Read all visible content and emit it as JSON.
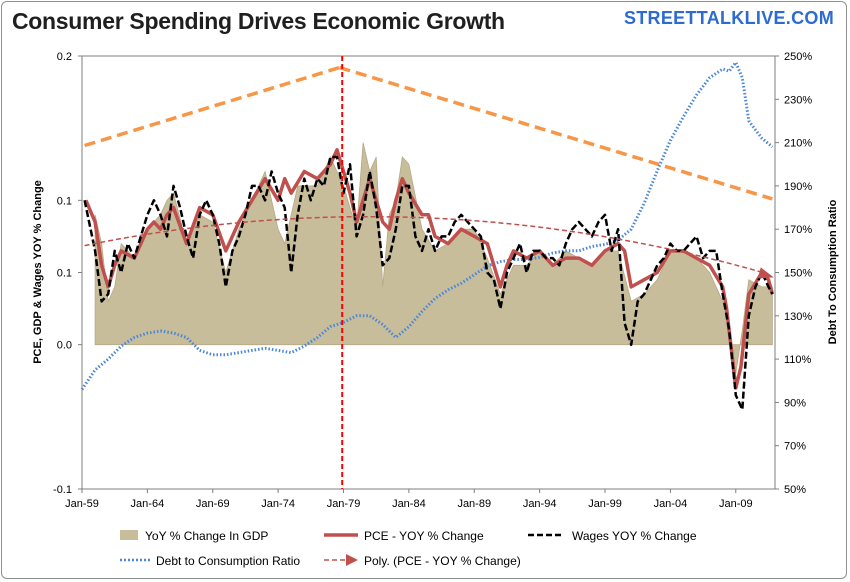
{
  "header": {
    "title": "Consumer Spending Drives Economic Growth",
    "brand": "STREETTALKLIVE.COM"
  },
  "colors": {
    "gdp": "#c8bd9a",
    "pce": "#c0504d",
    "wages": "#000000",
    "debt": "#4a86d9",
    "trendline": "#f79646",
    "poly": "#c0504d",
    "marker": "#ff0000"
  },
  "chart_data": {
    "type": "area",
    "title": "Consumer Spending Drives Economic Growth",
    "ylabel": "PCE, GDP & Wages YOY % Change",
    "y2label": "Debt To Consumption Ratio",
    "xlabel": "",
    "x_range": [
      1959.0,
      2012.0
    ],
    "ylim": [
      -0.1,
      0.2
    ],
    "y2lim": [
      0.5,
      2.5
    ],
    "x_ticks": [
      "Jan-59",
      "Jan-64",
      "Jan-69",
      "Jan-74",
      "Jan-79",
      "Jan-84",
      "Jan-89",
      "Jan-94",
      "Jan-99",
      "Jan-04",
      "Jan-09"
    ],
    "x_tick_years": [
      1959,
      1964,
      1969,
      1974,
      1979,
      1984,
      1989,
      1994,
      1999,
      2004,
      2009
    ],
    "y_ticks": [
      "-0.1",
      "0.0",
      "0.1",
      "0.1",
      "0.2"
    ],
    "y_tick_values": [
      -0.1,
      0.0,
      0.05,
      0.1,
      0.2
    ],
    "y2_ticks": [
      "50%",
      "70%",
      "90%",
      "110%",
      "130%",
      "150%",
      "170%",
      "190%",
      "210%",
      "230%",
      "250%"
    ],
    "y2_tick_values": [
      0.5,
      0.7,
      0.9,
      1.1,
      1.3,
      1.5,
      1.7,
      1.9,
      2.1,
      2.3,
      2.5
    ],
    "legend": [
      {
        "key": "gdp",
        "label": "YoY % Change In GDP"
      },
      {
        "key": "pce",
        "label": "PCE - YOY % Change"
      },
      {
        "key": "wages",
        "label": "Wages YOY % Change"
      },
      {
        "key": "debt",
        "label": "Debt to Consumption Ratio"
      },
      {
        "key": "poly",
        "label": "Poly. (PCE - YOY % Change)"
      }
    ],
    "marker_year": 1978.9,
    "series": [
      {
        "name": "YoY % Change In GDP",
        "axis": "left",
        "x": [
          1960,
          1960.5,
          1961,
          1961.5,
          1962,
          1963,
          1964,
          1965,
          1965.5,
          1966,
          1967,
          1968,
          1969,
          1970,
          1971,
          1972,
          1973,
          1974,
          1974.5,
          1975,
          1975.5,
          1976,
          1977,
          1978,
          1979,
          1979.5,
          1980,
          1980.5,
          1981,
          1981.5,
          1982,
          1982.5,
          1983,
          1983.5,
          1984,
          1985,
          1986,
          1987,
          1988,
          1989,
          1990,
          1991,
          1992,
          1993,
          1994,
          1995,
          1996,
          1997,
          1998,
          1999,
          2000,
          2001,
          2002,
          2003,
          2004,
          2005,
          2006,
          2007,
          2008,
          2008.5,
          2009,
          2009.5,
          2010,
          2011,
          2011.8
        ],
        "values": [
          0.09,
          0.07,
          0.03,
          0.04,
          0.07,
          0.06,
          0.08,
          0.09,
          0.1,
          0.105,
          0.07,
          0.09,
          0.085,
          0.05,
          0.08,
          0.1,
          0.12,
          0.08,
          0.07,
          0.09,
          0.11,
          0.11,
          0.11,
          0.13,
          0.11,
          0.095,
          0.08,
          0.14,
          0.12,
          0.13,
          0.04,
          0.09,
          0.1,
          0.13,
          0.125,
          0.08,
          0.065,
          0.07,
          0.08,
          0.08,
          0.06,
          0.035,
          0.055,
          0.055,
          0.065,
          0.055,
          0.065,
          0.06,
          0.055,
          0.065,
          0.065,
          0.03,
          0.035,
          0.045,
          0.065,
          0.065,
          0.06,
          0.05,
          0.03,
          0.015,
          -0.02,
          0.01,
          0.045,
          0.04,
          0.04
        ]
      },
      {
        "name": "PCE - YOY % Change",
        "axis": "left",
        "x": [
          1959.3,
          1960,
          1960.5,
          1961,
          1961.5,
          1962,
          1963,
          1964,
          1964.5,
          1965,
          1965.5,
          1966,
          1967,
          1968,
          1969,
          1970,
          1971,
          1972,
          1973,
          1974,
          1974.5,
          1975,
          1976,
          1977,
          1978,
          1978.5,
          1979,
          1979.5,
          1980,
          1980.5,
          1981,
          1982,
          1982.5,
          1983,
          1983.5,
          1984,
          1985,
          1985.5,
          1986,
          1987,
          1988,
          1989,
          1990,
          1991,
          1991.5,
          1992,
          1993,
          1994,
          1995,
          1996,
          1997,
          1998,
          1999,
          2000,
          2000.5,
          2001,
          2002,
          2003,
          2004,
          2005,
          2006,
          2007,
          2008,
          2008.3,
          2009,
          2009.4,
          2010,
          2011,
          2011.5,
          2011.8
        ],
        "values": [
          0.1,
          0.085,
          0.055,
          0.04,
          0.055,
          0.065,
          0.06,
          0.08,
          0.085,
          0.08,
          0.09,
          0.095,
          0.07,
          0.095,
          0.09,
          0.065,
          0.085,
          0.1,
          0.115,
          0.1,
          0.115,
          0.105,
          0.12,
          0.115,
          0.125,
          0.135,
          0.12,
          0.105,
          0.085,
          0.1,
          0.115,
          0.085,
          0.08,
          0.1,
          0.115,
          0.105,
          0.09,
          0.09,
          0.075,
          0.07,
          0.08,
          0.075,
          0.07,
          0.04,
          0.055,
          0.065,
          0.06,
          0.065,
          0.055,
          0.06,
          0.06,
          0.055,
          0.065,
          0.07,
          0.065,
          0.04,
          0.045,
          0.05,
          0.065,
          0.065,
          0.06,
          0.055,
          0.04,
          0.025,
          -0.03,
          -0.015,
          0.035,
          0.05,
          0.045,
          0.035
        ]
      },
      {
        "name": "Wages YOY % Change",
        "axis": "left",
        "x": [
          1959.2,
          1960,
          1960.5,
          1961,
          1961.5,
          1962,
          1962.5,
          1963,
          1963.5,
          1964,
          1964.5,
          1965,
          1965.5,
          1966,
          1966.5,
          1967,
          1967.5,
          1968,
          1968.5,
          1969,
          1969.5,
          1970,
          1970.5,
          1971,
          1971.5,
          1972,
          1972.5,
          1973,
          1973.5,
          1974,
          1974.5,
          1975,
          1975.5,
          1976,
          1976.5,
          1977,
          1977.5,
          1978,
          1978.5,
          1979,
          1979.5,
          1980,
          1980.5,
          1981,
          1981.5,
          1982,
          1982.5,
          1983,
          1983.5,
          1984,
          1984.5,
          1985,
          1985.5,
          1986,
          1986.5,
          1987,
          1987.5,
          1988,
          1988.5,
          1989,
          1989.5,
          1990,
          1990.5,
          1991,
          1991.5,
          1992,
          1992.5,
          1993,
          1993.5,
          1994,
          1994.5,
          1995,
          1995.5,
          1996,
          1996.5,
          1997,
          1997.5,
          1998,
          1998.5,
          1999,
          1999.5,
          2000,
          2000.5,
          2001,
          2001.5,
          2002,
          2002.5,
          2003,
          2003.5,
          2004,
          2004.5,
          2005,
          2005.5,
          2006,
          2006.5,
          2007,
          2007.5,
          2008,
          2008.5,
          2009,
          2009.5,
          2010,
          2010.5,
          2011,
          2011.5,
          2011.8
        ],
        "values": [
          0.1,
          0.065,
          0.03,
          0.035,
          0.065,
          0.05,
          0.07,
          0.06,
          0.075,
          0.09,
          0.1,
          0.09,
          0.075,
          0.11,
          0.095,
          0.075,
          0.06,
          0.09,
          0.1,
          0.09,
          0.07,
          0.04,
          0.065,
          0.075,
          0.09,
          0.11,
          0.11,
          0.1,
          0.12,
          0.105,
          0.095,
          0.05,
          0.09,
          0.115,
          0.1,
          0.115,
          0.11,
          0.13,
          0.13,
          0.105,
          0.125,
          0.075,
          0.09,
          0.12,
          0.095,
          0.055,
          0.06,
          0.08,
          0.11,
          0.11,
          0.075,
          0.065,
          0.08,
          0.065,
          0.075,
          0.075,
          0.085,
          0.09,
          0.085,
          0.08,
          0.075,
          0.05,
          0.045,
          0.025,
          0.05,
          0.06,
          0.07,
          0.05,
          0.065,
          0.065,
          0.06,
          0.06,
          0.055,
          0.07,
          0.08,
          0.085,
          0.08,
          0.075,
          0.085,
          0.09,
          0.065,
          0.08,
          0.015,
          0.0,
          0.03,
          0.035,
          0.045,
          0.055,
          0.06,
          0.07,
          0.065,
          0.065,
          0.07,
          0.075,
          0.06,
          0.065,
          0.065,
          0.035,
          0.01,
          -0.035,
          -0.045,
          0.02,
          0.04,
          0.05,
          0.04,
          0.035
        ]
      },
      {
        "name": "Debt to Consumption Ratio",
        "axis": "right",
        "x": [
          1959.0,
          1960,
          1961,
          1962,
          1963,
          1964,
          1965,
          1966,
          1967,
          1968,
          1969,
          1970,
          1971,
          1972,
          1973,
          1974,
          1975,
          1976,
          1977,
          1978,
          1979,
          1980,
          1981,
          1982,
          1983,
          1984,
          1985,
          1986,
          1987,
          1988,
          1989,
          1990,
          1991,
          1992,
          1993,
          1994,
          1995,
          1996,
          1997,
          1998,
          1999,
          2000,
          2001,
          2002,
          2003,
          2004,
          2005,
          2006,
          2007,
          2008,
          2008.5,
          2009,
          2009.5,
          2010,
          2011,
          2011.8
        ],
        "values": [
          0.96,
          1.05,
          1.1,
          1.16,
          1.2,
          1.22,
          1.23,
          1.22,
          1.2,
          1.14,
          1.12,
          1.12,
          1.13,
          1.14,
          1.15,
          1.14,
          1.13,
          1.16,
          1.2,
          1.25,
          1.27,
          1.3,
          1.3,
          1.26,
          1.2,
          1.25,
          1.32,
          1.38,
          1.42,
          1.45,
          1.49,
          1.53,
          1.55,
          1.56,
          1.56,
          1.57,
          1.59,
          1.6,
          1.6,
          1.62,
          1.63,
          1.65,
          1.7,
          1.82,
          1.97,
          2.11,
          2.22,
          2.32,
          2.4,
          2.44,
          2.43,
          2.47,
          2.4,
          2.2,
          2.12,
          2.08
        ]
      }
    ],
    "trendlines": [
      {
        "name": "rising trend",
        "x": [
          1959.2,
          1978.7
        ],
        "values": [
          0.138,
          0.192
        ]
      },
      {
        "name": "falling trend",
        "x": [
          1978.7,
          2011.8
        ],
        "values": [
          0.192,
          0.101
        ]
      }
    ],
    "poly_fit": {
      "name": "Poly. (PCE - YOY % Change)",
      "a": 0.0886,
      "b": 0.00012,
      "c": -4.25e-05,
      "center": 1979.5
    }
  }
}
